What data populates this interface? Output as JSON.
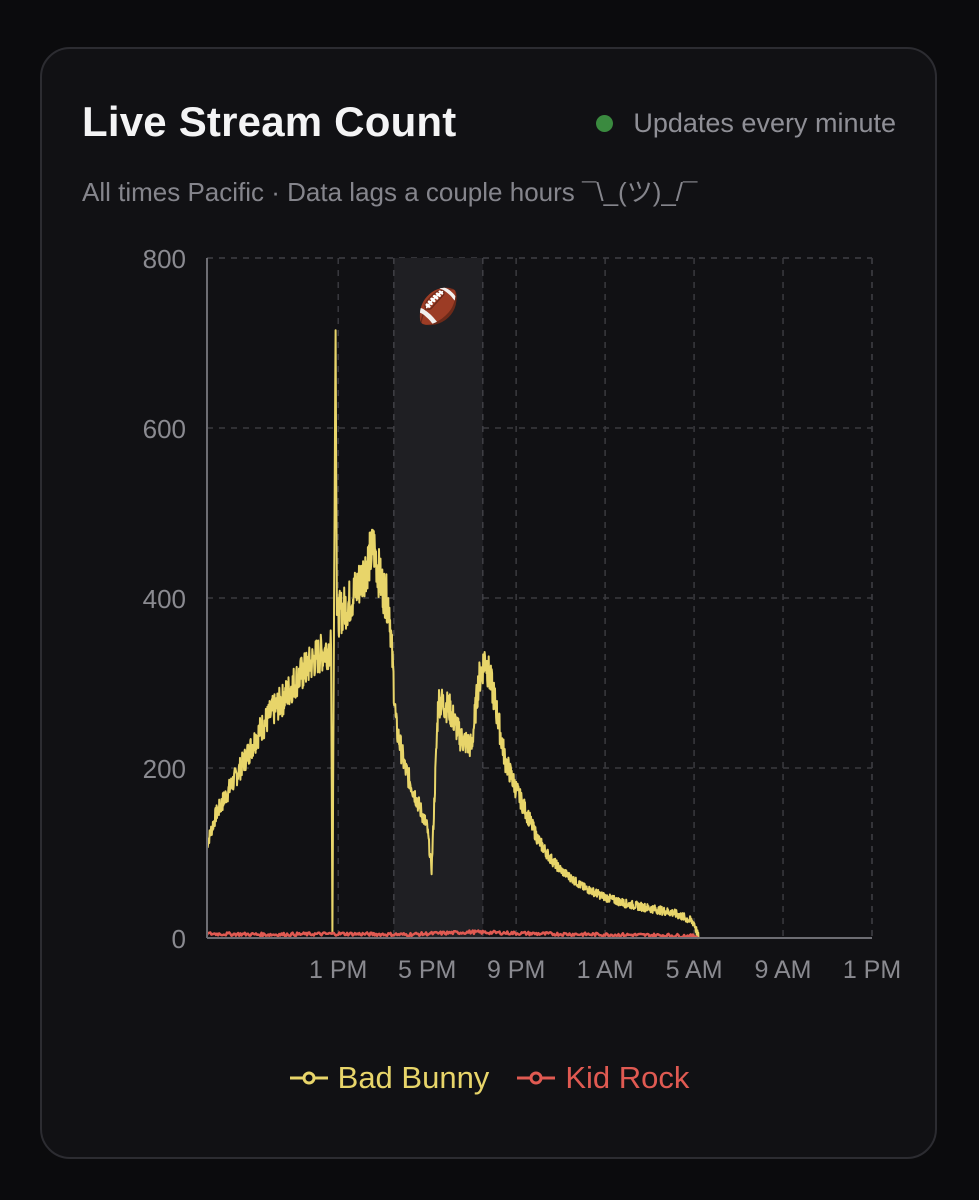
{
  "card": {
    "title": "Live Stream Count",
    "status_text": "Updates every minute",
    "status_dot_color": "#3a8a3f",
    "subtitle": "All times Pacific · Data lags a couple hours ¯\\_(ツ)_/¯"
  },
  "chart_data": {
    "type": "line",
    "y_ticks": [
      "0",
      "200",
      "400",
      "600",
      "800"
    ],
    "ylim": [
      0,
      800
    ],
    "x_ticks": [
      "1 PM",
      "5 PM",
      "9 PM",
      "1 AM",
      "5 AM",
      "9 AM",
      "1 PM"
    ],
    "x_unit": "hours (Pacific), where 13 = 1 PM on day 1 and 37 = 1 PM on day 2",
    "xlim": [
      7.1,
      37
    ],
    "grid": true,
    "highlight": {
      "x_start": 15.5,
      "x_end": 19.5,
      "icon": "football-icon",
      "glyph": "🏈"
    },
    "series": [
      {
        "name": "Bad Bunny",
        "color": "#e8d56a",
        "x": [
          7.1,
          7.5,
          8.0,
          8.5,
          9.0,
          9.5,
          10.0,
          10.5,
          11.0,
          11.5,
          12.0,
          12.5,
          12.68,
          12.74,
          12.82,
          12.88,
          12.94,
          13.0,
          13.5,
          14.0,
          14.3,
          14.6,
          14.9,
          15.3,
          15.6,
          16.0,
          16.5,
          17.0,
          17.2,
          17.5,
          18.0,
          18.5,
          19.0,
          19.3,
          19.6,
          20.0,
          20.5,
          21.0,
          21.5,
          22.0,
          22.5,
          23.0,
          24.0,
          25.0,
          26.0,
          27.0,
          28.0,
          28.5,
          29.0,
          29.2
        ],
        "values": [
          110,
          145,
          170,
          195,
          220,
          245,
          265,
          280,
          300,
          315,
          330,
          340,
          340,
          5,
          430,
          715,
          380,
          380,
          395,
          420,
          440,
          460,
          420,
          390,
          250,
          200,
          165,
          130,
          80,
          280,
          270,
          235,
          225,
          300,
          330,
          285,
          210,
          175,
          145,
          115,
          95,
          80,
          60,
          48,
          40,
          35,
          30,
          25,
          18,
          0
        ]
      },
      {
        "name": "Kid Rock",
        "color": "#e05a52",
        "x": [
          7.1,
          10,
          13,
          16,
          19,
          22,
          25,
          28,
          29.2
        ],
        "values": [
          3,
          2,
          3,
          2,
          5,
          3,
          2,
          1,
          0
        ]
      }
    ]
  }
}
